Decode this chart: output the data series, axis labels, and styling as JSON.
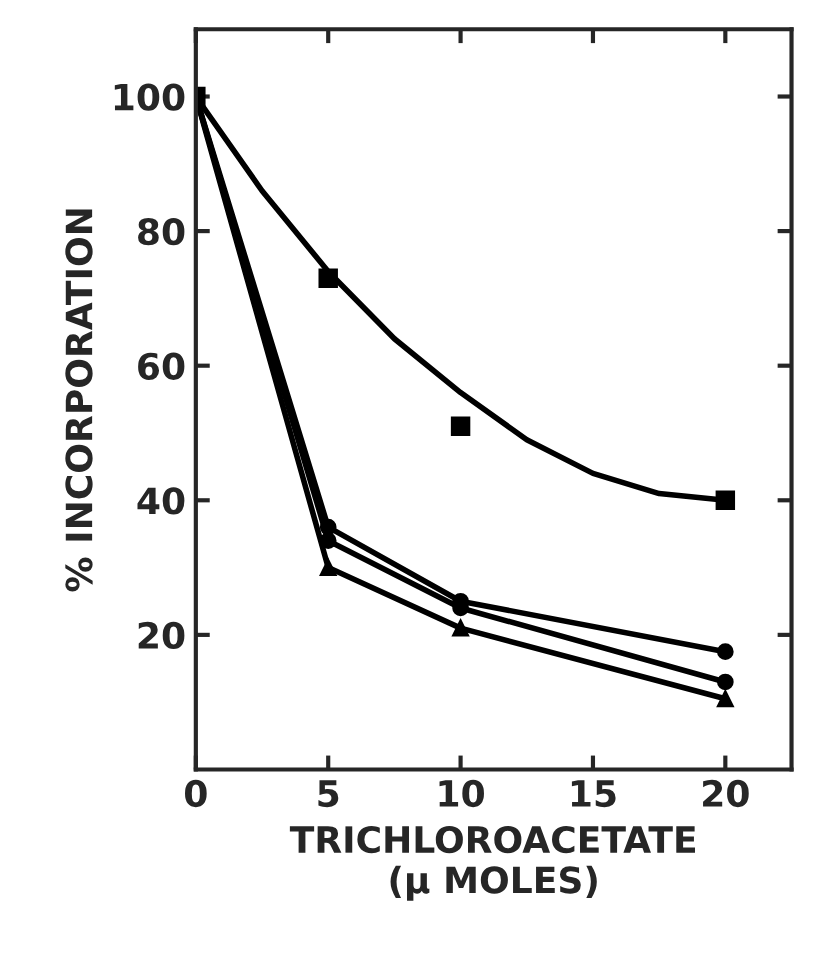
{
  "chart_data": {
    "type": "line",
    "xlabel": "TRICHLOROACETATE\n(μ MOLES)",
    "ylabel": "% INCORPORATION",
    "xlim": [
      0,
      22.5
    ],
    "ylim": [
      0,
      110
    ],
    "xticks": [
      0,
      5,
      10,
      15,
      20
    ],
    "yticks": [
      20,
      40,
      60,
      80,
      100
    ],
    "grid": false,
    "legend": false,
    "series": [
      {
        "type": "scatter",
        "color": "#000000",
        "marker": "square",
        "x": [
          0,
          5,
          10,
          20
        ],
        "values": [
          100,
          73,
          51,
          40
        ]
      },
      {
        "color": "#000000",
        "marker": "none",
        "x": [
          0,
          2.5,
          5,
          7.5,
          10,
          12.5,
          15,
          17.5,
          20
        ],
        "values": [
          100,
          86,
          74,
          64,
          56,
          49,
          44,
          41,
          40
        ]
      },
      {
        "color": "#000000",
        "marker": "circle",
        "x": [
          0,
          5,
          10,
          20
        ],
        "values": [
          100,
          36,
          25,
          17.5
        ]
      },
      {
        "color": "#000000",
        "marker": "circle",
        "x": [
          0,
          5,
          10,
          20
        ],
        "values": [
          100,
          34,
          24,
          13
        ]
      },
      {
        "color": "#000000",
        "marker": "triangle",
        "x": [
          0,
          5,
          10,
          20
        ],
        "values": [
          100,
          30,
          21,
          10.5
        ]
      }
    ]
  }
}
